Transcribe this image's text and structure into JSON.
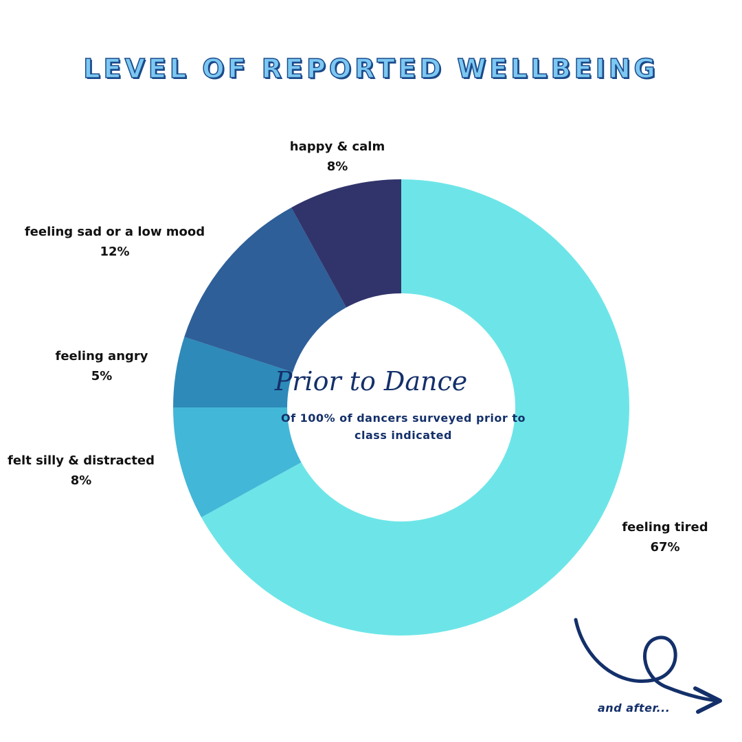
{
  "title": "LEVEL OF REPORTED WELLBEING",
  "center": {
    "title": "Prior to Dance",
    "subtitle": "Of 100% of dancers surveyed prior to class indicated"
  },
  "footer": {
    "next_label": "and after..."
  },
  "colors": {
    "feeling_tired": "#6de5e8",
    "felt_silly": "#43b7d7",
    "feeling_angry": "#2e8ab9",
    "feeling_sad": "#2e5f98",
    "happy_calm": "#31346b",
    "title_fill": "#7cc8f2",
    "title_stroke": "#1b4a8a",
    "text_navy": "#14306a"
  },
  "chart_data": {
    "type": "pie",
    "donut": true,
    "start_angle_deg": 0,
    "direction": "clockwise",
    "slices": [
      {
        "label": "feeling tired",
        "value": 67,
        "value_label": "67%",
        "color": "#6de5e8"
      },
      {
        "label": "felt silly & distracted",
        "value": 8,
        "value_label": "8%",
        "color": "#43b7d7"
      },
      {
        "label": "feeling angry",
        "value": 5,
        "value_label": "5%",
        "color": "#2e8ab9"
      },
      {
        "label": "feeling sad or a low mood",
        "value": 12,
        "value_label": "12%",
        "color": "#2e5f98"
      },
      {
        "label": "happy & calm",
        "value": 8,
        "value_label": "8%",
        "color": "#31346b"
      }
    ]
  }
}
